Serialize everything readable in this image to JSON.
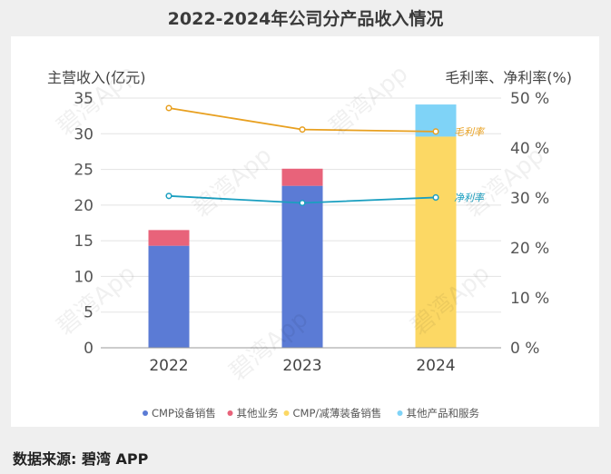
{
  "title": "2022-2024年公司分产品收入情况",
  "source": "数据来源: 碧湾 APP",
  "watermark": "碧湾App",
  "chart_data": {
    "type": "bar+line",
    "categories": [
      "2022",
      "2023",
      "2024"
    ],
    "left_axis": {
      "label": "主营收入(亿元)",
      "min": 0,
      "max": 35,
      "ticks": [
        "0",
        "5",
        "10",
        "15",
        "20",
        "25",
        "30",
        "35"
      ]
    },
    "right_axis": {
      "label": "毛利率、净利率(%)",
      "min": 0,
      "max": 50,
      "ticks": [
        "0 %",
        "10 %",
        "20 %",
        "30 %",
        "40 %",
        "50 %"
      ]
    },
    "bar_series": [
      {
        "name": "CMP设备销售",
        "color": "#5b7bd5",
        "values": [
          14.3,
          22.7,
          0
        ]
      },
      {
        "name": "其他业务",
        "color": "#e8637a",
        "values": [
          2.2,
          2.4,
          0
        ]
      },
      {
        "name": "CMP/减薄装备销售",
        "color": "#fcd864",
        "values": [
          0,
          0,
          29.6
        ]
      },
      {
        "name": "其他产品和服务",
        "color": "#7fd3f7",
        "values": [
          0,
          0,
          4.5
        ]
      }
    ],
    "line_series": [
      {
        "name": "毛利率",
        "color": "#e8a020",
        "values": [
          48.0,
          43.7,
          43.3
        ]
      },
      {
        "name": "净利率",
        "color": "#1a9fc0",
        "values": [
          30.4,
          29.0,
          30.1
        ]
      }
    ],
    "legend": [
      "CMP设备销售",
      "其他业务",
      "CMP/减薄装备销售",
      "其他产品和服务"
    ],
    "legend_position": "bottom",
    "grid": true
  }
}
